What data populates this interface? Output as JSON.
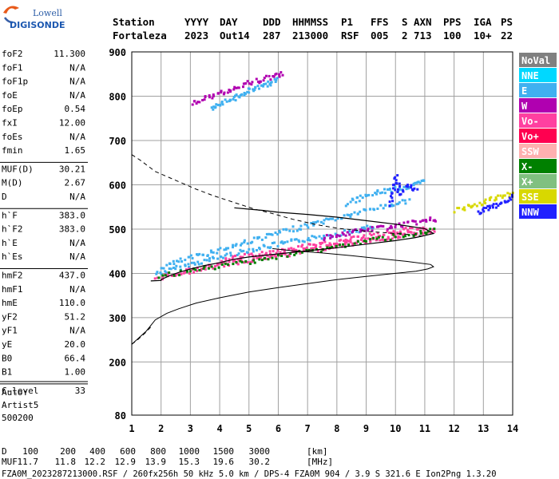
{
  "header": {
    "logo": {
      "top": "Lowell",
      "main": "DIGISONDE"
    },
    "labels": [
      "Station",
      "YYYY",
      "DAY",
      "DDD",
      "HHMMSS",
      "P1",
      "FFS",
      "S",
      "AXN",
      "PPS",
      "IGA",
      "PS"
    ],
    "values": [
      "Fortaleza",
      "2023",
      "Out14",
      "287",
      "213000",
      "RSF",
      "005",
      "2",
      "713",
      "100",
      "10+",
      "22"
    ]
  },
  "params": [
    {
      "group": 1,
      "name": "foF2",
      "value": "11.300"
    },
    {
      "group": 1,
      "name": "foF1",
      "value": "N/A"
    },
    {
      "group": 1,
      "name": "foF1p",
      "value": "N/A"
    },
    {
      "group": 1,
      "name": "foE",
      "value": "N/A"
    },
    {
      "group": 1,
      "name": "foEp",
      "value": "0.54"
    },
    {
      "group": 1,
      "name": "fxI",
      "value": "12.00"
    },
    {
      "group": 1,
      "name": "foEs",
      "value": "N/A"
    },
    {
      "group": 1,
      "name": "fmin",
      "value": "1.65"
    },
    {
      "group": 2,
      "name": "MUF(D)",
      "value": "30.21"
    },
    {
      "group": 2,
      "name": "M(D)",
      "value": "2.67"
    },
    {
      "group": 2,
      "name": "D",
      "value": "N/A"
    },
    {
      "group": 3,
      "name": "h`F",
      "value": "383.0"
    },
    {
      "group": 3,
      "name": "h`F2",
      "value": "383.0"
    },
    {
      "group": 3,
      "name": "h`E",
      "value": "N/A"
    },
    {
      "group": 3,
      "name": "h`Es",
      "value": "N/A"
    },
    {
      "group": 4,
      "name": "hmF2",
      "value": "437.0"
    },
    {
      "group": 4,
      "name": "hmF1",
      "value": "N/A"
    },
    {
      "group": 4,
      "name": "hmE",
      "value": "110.0"
    },
    {
      "group": 4,
      "name": "yF2",
      "value": "51.2"
    },
    {
      "group": 4,
      "name": "yF1",
      "value": "N/A"
    },
    {
      "group": 4,
      "name": "yE",
      "value": "20.0"
    },
    {
      "group": 4,
      "name": "B0",
      "value": "66.4"
    },
    {
      "group": 4,
      "name": "B1",
      "value": "1.00"
    },
    {
      "group": 5,
      "name": "C-level",
      "value": "33"
    }
  ],
  "scaling": [
    "Auto:",
    "Artist5",
    "500200"
  ],
  "legend": [
    {
      "label": "NoVal",
      "color": "#808080",
      "text_color": "#ffffff"
    },
    {
      "label": "NNE",
      "color": "#00d8ff",
      "text_color": "#ffffff"
    },
    {
      "label": "E",
      "color": "#40b0f0",
      "text_color": "#ffffff"
    },
    {
      "label": "W",
      "color": "#b000b0",
      "text_color": "#ffffff"
    },
    {
      "label": "Vo-",
      "color": "#ff40a0",
      "text_color": "#ffffff"
    },
    {
      "label": "Vo+",
      "color": "#ff0050",
      "text_color": "#ffffff"
    },
    {
      "label": "SSW",
      "color": "#ffb0b0",
      "text_color": "#ffffff"
    },
    {
      "label": "X-",
      "color": "#008000",
      "text_color": "#ffffff"
    },
    {
      "label": "X+",
      "color": "#80c080",
      "text_color": "#ffffff"
    },
    {
      "label": "SSE",
      "color": "#d8d800",
      "text_color": "#ffffff"
    },
    {
      "label": "NNW",
      "color": "#2020ff",
      "text_color": "#ffffff"
    }
  ],
  "footer": {
    "d_label": "D",
    "d_values": [
      "100",
      "200",
      "400",
      "600",
      "800",
      "1000",
      "1500",
      "3000",
      "[km]"
    ],
    "muf_label": "MUF",
    "muf_values": [
      "11.7",
      "11.8",
      "12.2",
      "12.9",
      "13.9",
      "15.3",
      "19.6",
      "30.2",
      "[MHz]"
    ],
    "file_line": "FZA0M_2023287213000.RSF / 260fx256h 50 kHz 5.0 km / DPS-4 FZA0M 904 / 3.9 S 321.6 E   Ion2Png 1.3.20"
  },
  "chart_data": {
    "type": "scatter",
    "xlim": [
      1,
      14
    ],
    "ylim": [
      80,
      900
    ],
    "x_ticks": [
      "1",
      "2",
      "3",
      "4",
      "5",
      "6",
      "7",
      "8",
      "9",
      "10",
      "11",
      "12",
      "13",
      "14"
    ],
    "y_ticks": [
      {
        "value": 80,
        "label": "80"
      },
      {
        "value": 200,
        "label": "200"
      },
      {
        "value": 300,
        "label": "300"
      },
      {
        "value": 400,
        "label": "400"
      },
      {
        "value": 500,
        "label": "500"
      },
      {
        "value": 600,
        "label": "600"
      },
      {
        "value": 700,
        "label": "700"
      },
      {
        "value": 800,
        "label": "800"
      },
      {
        "value": 900,
        "label": "900"
      }
    ],
    "grid": true,
    "legend_position": "right",
    "traces": [
      {
        "mode": "E",
        "points": [
          [
            1.8,
            402
          ],
          [
            2.3,
            410
          ],
          [
            2.8,
            420
          ],
          [
            3.3,
            428
          ],
          [
            3.8,
            436
          ],
          [
            4.3,
            445
          ],
          [
            4.8,
            452
          ],
          [
            5.3,
            460
          ],
          [
            5.8,
            466
          ],
          [
            6.3,
            472
          ],
          [
            6.8,
            478
          ],
          [
            7.3,
            484
          ],
          [
            7.8,
            490
          ],
          [
            8.3,
            496
          ],
          [
            8.8,
            502
          ],
          [
            9.3,
            508
          ]
        ]
      },
      {
        "mode": "E",
        "points": [
          [
            2.0,
            417
          ],
          [
            2.5,
            428
          ],
          [
            3.0,
            438
          ],
          [
            3.5,
            447
          ],
          [
            4.0,
            456
          ],
          [
            4.5,
            466
          ],
          [
            5.0,
            476
          ],
          [
            5.5,
            485
          ],
          [
            6.0,
            494
          ],
          [
            6.5,
            503
          ],
          [
            7.0,
            511
          ],
          [
            7.5,
            520
          ],
          [
            8.0,
            527
          ],
          [
            8.5,
            536
          ],
          [
            9.0,
            545
          ],
          [
            9.5,
            553
          ],
          [
            10.0,
            560
          ],
          [
            10.5,
            568
          ]
        ]
      },
      {
        "mode": "E",
        "points": [
          [
            8.3,
            560
          ],
          [
            8.7,
            570
          ],
          [
            9.1,
            580
          ],
          [
            9.5,
            588
          ],
          [
            9.9,
            592
          ],
          [
            10.3,
            596
          ],
          [
            10.7,
            604
          ],
          [
            11.0,
            610
          ]
        ]
      },
      {
        "mode": "Vo-",
        "points": [
          [
            1.8,
            392
          ],
          [
            2.2,
            398
          ],
          [
            2.6,
            404
          ],
          [
            3.0,
            409
          ],
          [
            3.4,
            414
          ],
          [
            3.8,
            419
          ],
          [
            4.2,
            424
          ],
          [
            4.6,
            428
          ],
          [
            5.0,
            433
          ],
          [
            5.4,
            437
          ],
          [
            5.8,
            441
          ],
          [
            6.2,
            445
          ],
          [
            6.6,
            450
          ],
          [
            7.0,
            455
          ],
          [
            7.4,
            459
          ],
          [
            7.8,
            463
          ],
          [
            8.2,
            468
          ],
          [
            8.6,
            472
          ],
          [
            9.0,
            477
          ],
          [
            9.4,
            481
          ],
          [
            9.8,
            485
          ],
          [
            10.2,
            489
          ],
          [
            10.6,
            493
          ],
          [
            11.0,
            497
          ],
          [
            11.3,
            500
          ]
        ]
      },
      {
        "mode": "Vo-",
        "points": [
          [
            4.0,
            432
          ],
          [
            4.5,
            437
          ],
          [
            5.0,
            443
          ],
          [
            5.5,
            448
          ],
          [
            6.0,
            452
          ],
          [
            6.5,
            458
          ],
          [
            7.0,
            464
          ],
          [
            7.5,
            468
          ],
          [
            8.0,
            474
          ],
          [
            8.5,
            480
          ],
          [
            9.0,
            486
          ],
          [
            9.5,
            491
          ],
          [
            10.0,
            497
          ],
          [
            10.5,
            502
          ],
          [
            11.0,
            508
          ]
        ]
      },
      {
        "mode": "W",
        "points": [
          [
            7.5,
            483
          ],
          [
            8.0,
            489
          ],
          [
            8.5,
            495
          ],
          [
            9.0,
            501
          ],
          [
            9.5,
            506
          ],
          [
            10.0,
            510
          ],
          [
            10.5,
            516
          ],
          [
            11.0,
            521
          ],
          [
            11.4,
            526
          ]
        ]
      },
      {
        "mode": "X-",
        "points": [
          [
            1.9,
            395
          ],
          [
            2.8,
            405
          ],
          [
            3.6,
            414
          ],
          [
            4.4,
            424
          ],
          [
            5.2,
            432
          ],
          [
            6.0,
            440
          ],
          [
            6.8,
            450
          ],
          [
            7.6,
            459
          ],
          [
            8.4,
            468
          ],
          [
            9.2,
            478
          ],
          [
            10.0,
            486
          ],
          [
            10.8,
            494
          ],
          [
            11.3,
            499
          ]
        ]
      },
      {
        "mode": "E",
        "points": [
          [
            3.7,
            773
          ],
          [
            3.9,
            780
          ],
          [
            4.2,
            790
          ],
          [
            4.5,
            800
          ],
          [
            4.8,
            810
          ],
          [
            5.1,
            818
          ],
          [
            5.4,
            826
          ],
          [
            5.7,
            833
          ],
          [
            6.0,
            840
          ]
        ]
      },
      {
        "mode": "W",
        "points": [
          [
            3.0,
            785
          ],
          [
            3.4,
            795
          ],
          [
            3.8,
            805
          ],
          [
            4.2,
            815
          ],
          [
            4.6,
            825
          ],
          [
            5.0,
            833
          ],
          [
            5.4,
            840
          ],
          [
            5.8,
            848
          ],
          [
            6.2,
            854
          ]
        ]
      },
      {
        "mode": "SSE",
        "points": [
          [
            12.0,
            545
          ],
          [
            12.4,
            552
          ],
          [
            12.8,
            560
          ],
          [
            13.2,
            568
          ],
          [
            13.6,
            575
          ],
          [
            14.0,
            585
          ]
        ]
      },
      {
        "mode": "NNW",
        "points": [
          [
            12.8,
            540
          ],
          [
            13.1,
            548
          ],
          [
            13.4,
            556
          ],
          [
            13.7,
            566
          ],
          [
            14.0,
            578
          ]
        ]
      },
      {
        "mode": "NNW",
        "points": [
          [
            9.8,
            560
          ],
          [
            9.9,
            590
          ],
          [
            10.0,
            620
          ],
          [
            10.1,
            580
          ],
          [
            10.4,
            600
          ],
          [
            10.7,
            585
          ]
        ]
      }
    ],
    "profile": {
      "solid": [
        [
          1.65,
          383
        ],
        [
          2.0,
          384
        ],
        [
          2.0,
          386
        ],
        [
          2.3,
          395
        ],
        [
          2.6,
          402
        ],
        [
          3.0,
          410
        ],
        [
          3.5,
          418
        ],
        [
          4.0,
          424
        ],
        [
          4.5,
          432
        ],
        [
          5.0,
          437
        ],
        [
          6.0,
          444
        ],
        [
          7.0,
          451
        ],
        [
          8.0,
          458
        ],
        [
          9.0,
          466
        ],
        [
          10.0,
          474
        ],
        [
          10.7,
          481
        ],
        [
          11.1,
          487
        ],
        [
          11.3,
          490
        ],
        [
          11.0,
          501
        ],
        [
          10.0,
          511
        ],
        [
          9.0,
          519
        ],
        [
          8.0,
          527
        ],
        [
          7.0,
          533
        ],
        [
          6.0,
          538
        ],
        [
          5.5,
          542
        ],
        [
          5.0,
          545
        ],
        [
          4.5,
          548
        ]
      ],
      "lower": [
        [
          1.0,
          240
        ],
        [
          1.5,
          270
        ],
        [
          1.8,
          295
        ],
        [
          2.2,
          310
        ],
        [
          2.6,
          320
        ],
        [
          3.2,
          333
        ],
        [
          4.0,
          345
        ],
        [
          5.0,
          358
        ],
        [
          6.0,
          368
        ],
        [
          7.0,
          377
        ],
        [
          8.0,
          386
        ],
        [
          9.0,
          393
        ],
        [
          10.0,
          400
        ],
        [
          10.7,
          405
        ],
        [
          11.1,
          410
        ],
        [
          11.3,
          415
        ],
        [
          11.2,
          420
        ],
        [
          10.4,
          427
        ],
        [
          9.5,
          433
        ],
        [
          8.5,
          440
        ],
        [
          7.5,
          446
        ],
        [
          6.5,
          451
        ],
        [
          5.8,
          456
        ]
      ],
      "dashed": [
        [
          1.0,
          668
        ],
        [
          1.3,
          655
        ],
        [
          1.8,
          630
        ],
        [
          2.5,
          610
        ],
        [
          3.2,
          590
        ],
        [
          3.8,
          575
        ],
        [
          4.5,
          560
        ],
        [
          5.2,
          545
        ],
        [
          5.8,
          535
        ],
        [
          6.5,
          522
        ],
        [
          7.3,
          510
        ],
        [
          8.0,
          502
        ],
        [
          9.0,
          495
        ],
        [
          10.0,
          490
        ],
        [
          10.7,
          487
        ],
        [
          11.0,
          483
        ]
      ],
      "dashed_low": [
        [
          1.0,
          240
        ],
        [
          1.2,
          250
        ],
        [
          1.5,
          268
        ],
        [
          1.7,
          283
        ]
      ]
    }
  }
}
